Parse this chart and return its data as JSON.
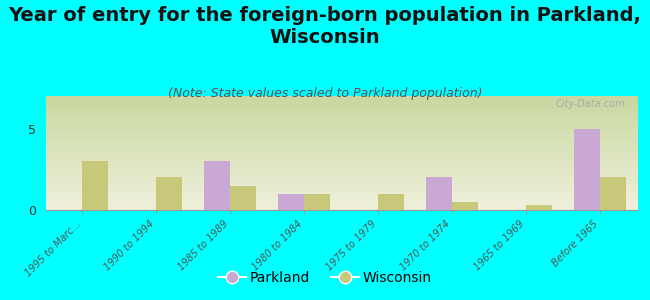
{
  "title": "Year of entry for the foreign-born population in Parkland,\nWisconsin",
  "subtitle": "(Note: State values scaled to Parkland population)",
  "categories": [
    "1995 to Marc...",
    "1990 to 1994",
    "1985 to 1989",
    "1980 to 1984",
    "1975 to 1979",
    "1970 to 1974",
    "1965 to 1969",
    "Before 1965"
  ],
  "parkland_values": [
    0,
    0,
    3,
    1,
    0,
    2,
    0,
    5
  ],
  "wisconsin_values": [
    3,
    2,
    1.5,
    1,
    1,
    0.5,
    0.3,
    2
  ],
  "parkland_color": "#c9a8d4",
  "wisconsin_color": "#c8c87a",
  "background_color": "#00ffff",
  "ylim": [
    0,
    7
  ],
  "yticks": [
    0,
    5
  ],
  "bar_width": 0.35,
  "title_fontsize": 14,
  "subtitle_fontsize": 9,
  "watermark": "City-Data.com"
}
